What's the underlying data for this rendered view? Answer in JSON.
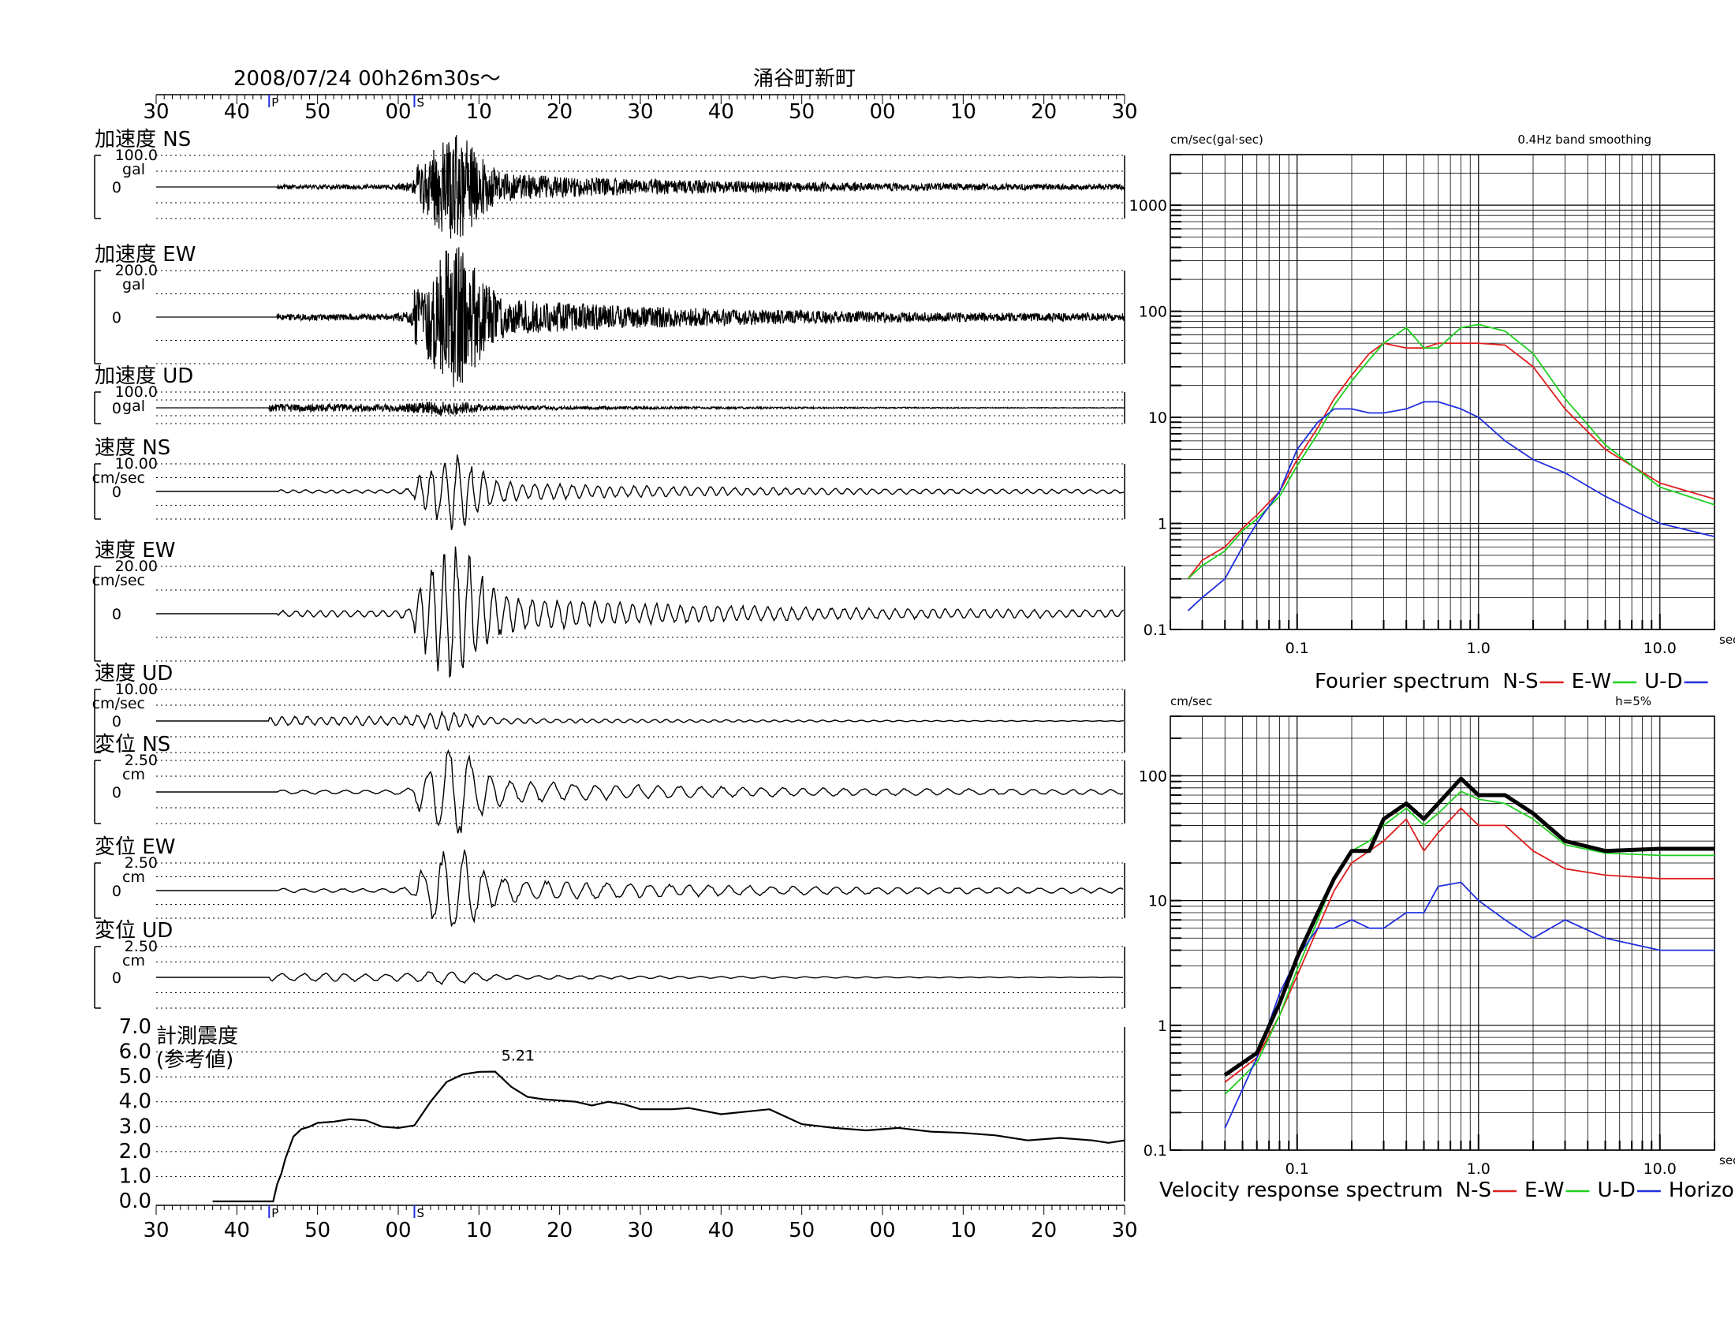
{
  "header": {
    "datetime": "2008/07/24  00h26m30s〜",
    "station": "涌谷町新町",
    "time_ticks": [
      "30",
      "40",
      "50",
      "00",
      "10",
      "20",
      "30",
      "40",
      "50",
      "00",
      "10",
      "20",
      "30"
    ],
    "p_marker": "P",
    "s_marker": "S"
  },
  "traces": [
    {
      "id": "acc-ns",
      "label": "加速度 NS",
      "scale": "100.0",
      "unit": "gal",
      "zero": "0",
      "kind": "acc",
      "seed": 11,
      "amp": 0.95,
      "env": "ns"
    },
    {
      "id": "acc-ew",
      "label": "加速度 EW",
      "scale": "200.0",
      "unit": "gal",
      "zero": "0",
      "kind": "acc",
      "seed": 23,
      "amp": 0.95,
      "env": "ew"
    },
    {
      "id": "acc-ud",
      "label": "加速度 UD",
      "scale": "100.0",
      "unit": "gal",
      "zero": "0",
      "kind": "acc",
      "seed": 37,
      "amp": 0.45,
      "env": "ud"
    },
    {
      "id": "vel-ns",
      "label": "速度 NS",
      "scale": "10.00",
      "unit": "cm/sec",
      "zero": "0",
      "kind": "vel",
      "seed": 41,
      "amp": 0.8,
      "env": "ns"
    },
    {
      "id": "vel-ew",
      "label": "速度 EW",
      "scale": "20.00",
      "unit": "cm/sec",
      "zero": "0",
      "kind": "vel",
      "seed": 53,
      "amp": 1.0,
      "env": "ew"
    },
    {
      "id": "vel-ud",
      "label": "速度 UD",
      "scale": "10.00",
      "unit": "cm/sec",
      "zero": "0",
      "kind": "vel",
      "seed": 67,
      "amp": 0.35,
      "env": "ud"
    },
    {
      "id": "dis-ns",
      "label": "変位 NS",
      "scale": "2.50",
      "unit": "cm",
      "zero": "0",
      "kind": "dis",
      "seed": 71,
      "amp": 0.9,
      "env": "ns"
    },
    {
      "id": "dis-ew",
      "label": "変位 EW",
      "scale": "2.50",
      "unit": "cm",
      "zero": "0",
      "kind": "dis",
      "seed": 83,
      "amp": 1.0,
      "env": "ew"
    },
    {
      "id": "dis-ud",
      "label": "変位 UD",
      "scale": "2.50",
      "unit": "cm",
      "zero": "0",
      "kind": "dis",
      "seed": 97,
      "amp": 0.3,
      "env": "ud"
    }
  ],
  "intensity": {
    "label_line1": "計測震度",
    "label_line2": "(参考値)",
    "max_label": "5.21",
    "y_ticks": [
      "7.0",
      "6.0",
      "5.0",
      "4.0",
      "3.0",
      "2.0",
      "1.0",
      "0.0"
    ]
  },
  "chart_data": [
    {
      "type": "line",
      "id": "seismic-intensity",
      "x_unit": "seconds from 00h26m30s",
      "x": [
        7,
        14.5,
        15,
        15.5,
        16,
        17,
        18,
        19,
        20,
        22,
        24,
        26,
        28,
        30,
        32,
        34,
        36,
        38,
        40,
        42,
        44,
        46,
        48,
        50,
        52,
        54,
        56,
        58,
        60,
        62,
        64,
        66,
        70,
        76,
        80,
        84,
        88,
        92,
        96,
        100,
        104,
        108,
        110,
        112,
        116,
        118,
        120
      ],
      "y": [
        0,
        0,
        0.7,
        1.1,
        1.7,
        2.6,
        2.9,
        3.0,
        3.15,
        3.2,
        3.3,
        3.25,
        3.0,
        2.95,
        3.05,
        4.0,
        4.8,
        5.1,
        5.2,
        5.21,
        4.6,
        4.2,
        4.1,
        4.05,
        4.0,
        3.85,
        4.0,
        3.9,
        3.7,
        3.7,
        3.7,
        3.75,
        3.5,
        3.7,
        3.1,
        2.95,
        2.85,
        2.95,
        2.8,
        2.75,
        2.65,
        2.45,
        2.5,
        2.55,
        2.45,
        2.35,
        2.45
      ],
      "ylim": [
        0,
        7
      ]
    },
    {
      "type": "line",
      "id": "fourier-spectrum",
      "title": "0.4Hz band smoothing",
      "ylabel": "cm/sec(gal·sec)",
      "xlabel": "sec",
      "log_x": true,
      "log_y": true,
      "xlim": [
        0.02,
        20
      ],
      "ylim": [
        0.1,
        3000
      ],
      "x_tick_labels": [
        "0.1",
        "1.0",
        "10.0"
      ],
      "y_tick_labels": [
        "1000",
        "100",
        "10",
        "1",
        "0.1"
      ],
      "legend_title": "Fourier spectrum",
      "series": [
        {
          "name": "N-S",
          "color": "#e02020",
          "x": [
            0.025,
            0.03,
            0.04,
            0.05,
            0.06,
            0.08,
            0.1,
            0.13,
            0.16,
            0.2,
            0.25,
            0.3,
            0.4,
            0.5,
            0.6,
            0.8,
            1.0,
            1.4,
            2,
            3,
            5,
            10,
            20
          ],
          "y": [
            0.3,
            0.45,
            0.6,
            0.9,
            1.2,
            2,
            4,
            8,
            15,
            25,
            40,
            50,
            45,
            45,
            50,
            50,
            50,
            48,
            30,
            12,
            5,
            2.4,
            1.7
          ]
        },
        {
          "name": "E-W",
          "color": "#20d020",
          "x": [
            0.025,
            0.03,
            0.04,
            0.05,
            0.06,
            0.08,
            0.1,
            0.13,
            0.16,
            0.2,
            0.25,
            0.3,
            0.4,
            0.5,
            0.6,
            0.8,
            1.0,
            1.4,
            2,
            3,
            5,
            10,
            20
          ],
          "y": [
            0.3,
            0.4,
            0.55,
            0.85,
            1.1,
            1.8,
            3.5,
            7,
            13,
            22,
            35,
            50,
            70,
            45,
            45,
            70,
            75,
            65,
            40,
            15,
            5.5,
            2.2,
            1.5
          ]
        },
        {
          "name": "U-D",
          "color": "#2030e0",
          "x": [
            0.025,
            0.03,
            0.04,
            0.05,
            0.06,
            0.08,
            0.1,
            0.13,
            0.16,
            0.2,
            0.25,
            0.3,
            0.4,
            0.5,
            0.6,
            0.8,
            1.0,
            1.4,
            2,
            3,
            5,
            10,
            20
          ],
          "y": [
            0.15,
            0.2,
            0.3,
            0.6,
            1.0,
            2,
            5,
            9,
            12,
            12,
            11,
            11,
            12,
            14,
            14,
            12,
            10,
            6,
            4,
            3,
            1.8,
            1.0,
            0.75
          ]
        }
      ]
    },
    {
      "type": "line",
      "id": "velocity-response-spectrum",
      "title": "h=5%",
      "ylabel": "cm/sec",
      "xlabel": "sec",
      "log_x": true,
      "log_y": true,
      "xlim": [
        0.02,
        20
      ],
      "ylim": [
        0.1,
        300
      ],
      "x_tick_labels": [
        "0.1",
        "1.0",
        "10.0"
      ],
      "y_tick_labels": [
        "100",
        "10",
        "1",
        "0.1"
      ],
      "legend_title": "Velocity response spectrum",
      "series": [
        {
          "name": "N-S",
          "color": "#e02020",
          "x": [
            0.04,
            0.06,
            0.08,
            0.1,
            0.13,
            0.16,
            0.2,
            0.25,
            0.3,
            0.4,
            0.5,
            0.6,
            0.8,
            1.0,
            1.4,
            2,
            3,
            5,
            10,
            20
          ],
          "y": [
            0.35,
            0.55,
            1.2,
            2.5,
            6,
            12,
            20,
            25,
            30,
            45,
            25,
            35,
            55,
            40,
            40,
            25,
            18,
            16,
            15,
            15
          ]
        },
        {
          "name": "E-W",
          "color": "#20d020",
          "x": [
            0.04,
            0.06,
            0.08,
            0.1,
            0.13,
            0.16,
            0.2,
            0.25,
            0.3,
            0.4,
            0.5,
            0.6,
            0.8,
            1.0,
            1.4,
            2,
            3,
            5,
            10,
            20
          ],
          "y": [
            0.28,
            0.5,
            1.2,
            2.8,
            7,
            15,
            25,
            30,
            40,
            55,
            40,
            50,
            75,
            65,
            60,
            45,
            28,
            24,
            23,
            23
          ]
        },
        {
          "name": "U-D",
          "color": "#2030e0",
          "x": [
            0.04,
            0.06,
            0.08,
            0.1,
            0.13,
            0.16,
            0.2,
            0.25,
            0.3,
            0.4,
            0.5,
            0.6,
            0.8,
            1.0,
            1.4,
            2,
            3,
            5,
            10,
            20
          ],
          "y": [
            0.15,
            0.55,
            1.8,
            3.5,
            6,
            6,
            7,
            6,
            6,
            8,
            8,
            13,
            14,
            10,
            7,
            5,
            7,
            5,
            4,
            4
          ]
        },
        {
          "name": "Horizon",
          "color": "#000000",
          "x": [
            0.04,
            0.06,
            0.08,
            0.1,
            0.13,
            0.16,
            0.2,
            0.25,
            0.3,
            0.4,
            0.5,
            0.6,
            0.8,
            1.0,
            1.4,
            2,
            3,
            5,
            10,
            20
          ],
          "y": [
            0.4,
            0.6,
            1.5,
            3.5,
            8,
            15,
            25,
            25,
            45,
            60,
            45,
            60,
            95,
            70,
            70,
            50,
            30,
            25,
            26,
            26
          ],
          "bold": true
        }
      ]
    }
  ]
}
